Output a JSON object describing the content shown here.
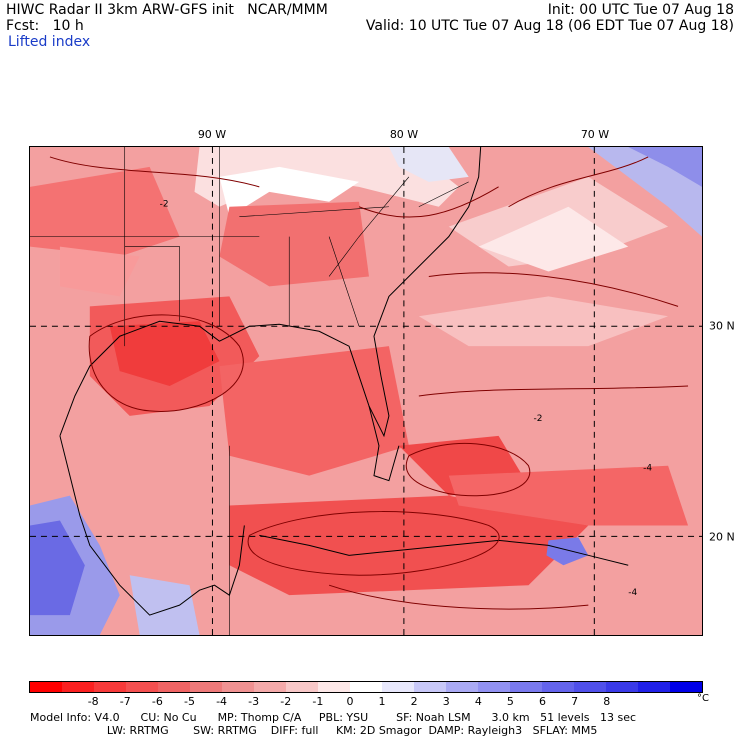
{
  "header": {
    "left_line1": "HIWC Radar II 3km ARW-GFS init   NCAR/MMM",
    "left_line2": "Fcst:   10 h",
    "field_name": "Lifted index",
    "right_line1": "Init: 00 UTC Tue 07 Aug 18",
    "right_line2": "Valid: 10 UTC Tue 07 Aug 18 (06 EDT Tue 07 Aug 18)"
  },
  "map": {
    "lon_labels": [
      "90 W",
      "80 W",
      "70 W"
    ],
    "lat_labels": [
      "30 N",
      "20 N"
    ],
    "contour_labels": [
      "-2",
      "-4",
      "-4",
      "-2"
    ]
  },
  "colorbar": {
    "ticks": [
      "-8",
      "-7",
      "-6",
      "-5",
      "-4",
      "-3",
      "-2",
      "-1",
      "0",
      "1",
      "2",
      "3",
      "4",
      "5",
      "6",
      "7",
      "8"
    ],
    "unit": "°C",
    "colors": [
      "#ff0000",
      "#fb2020",
      "#f73a3a",
      "#f45050",
      "#f06464",
      "#ee7a7a",
      "#f09292",
      "#f4aaaa",
      "#f8c8c8",
      "#fde8e8",
      "#ffffff",
      "#e8e8fc",
      "#c8c8f8",
      "#aaaaf4",
      "#9292f2",
      "#7a7aee",
      "#6464ec",
      "#5050ea",
      "#3a3ae8",
      "#2020e8",
      "#0000e8"
    ]
  },
  "footer": {
    "line1": "Model Info: V4.0      CU: No Cu      MP: Thomp C/A     PBL: YSU        SF: Noah LSM      3.0 km   51 levels   13 sec",
    "line2": "                      LW: RRTMG       SW: RRTMG    DIFF: full     KM: 2D Smagor  DAMP: Rayleigh3   SFLAY: MM5"
  }
}
